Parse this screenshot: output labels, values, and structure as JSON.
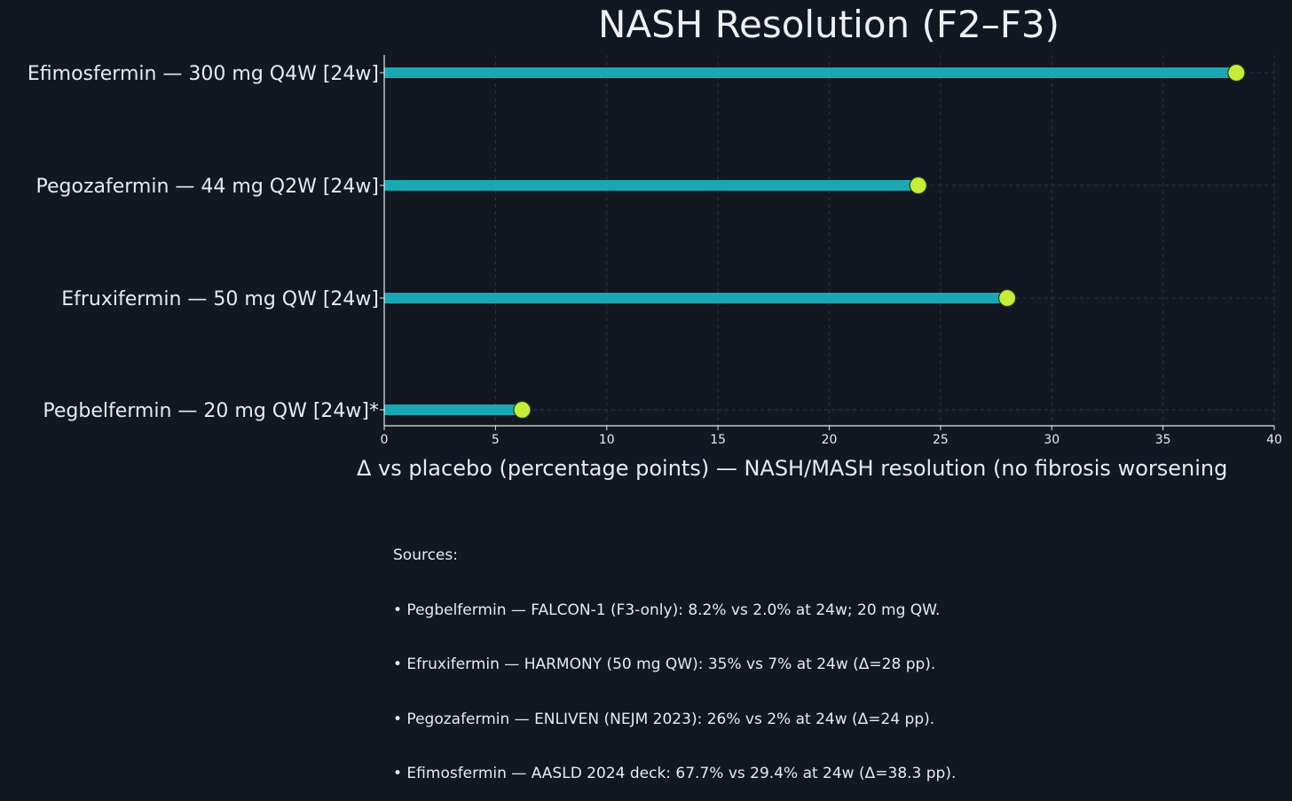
{
  "chart_data": {
    "type": "bar",
    "orientation": "horizontal",
    "title": "NASH Resolution (F2–F3)",
    "xlabel": "Δ vs placebo (percentage points) — NASH/MASH resolution (no fibrosis worsening",
    "ylabel": "",
    "xlim": [
      0,
      40
    ],
    "xticks": [
      0,
      5,
      10,
      15,
      20,
      25,
      30,
      35,
      40
    ],
    "grid": true,
    "categories": [
      "Efimosfermin — 300 mg Q4W [24w]",
      "Pegozafermin — 44 mg Q2W [24w]",
      "Efruxifermin — 50 mg QW [24w]",
      "Pegbelfermin — 20 mg QW [24w]*"
    ],
    "values": [
      38.3,
      24,
      28,
      6.2
    ],
    "colors": {
      "background": "#111821",
      "bar": "#1aa7b4",
      "marker": "#c6ec3a",
      "marker_edge": "#2b3a10",
      "grid": "#2a3440",
      "axis": "#e8eaed"
    }
  },
  "sources": {
    "heading": "Sources:",
    "lines": [
      "• Pegbelfermin — FALCON-1 (F3-only): 8.2% vs 2.0% at 24w; 20 mg QW.",
      "• Efruxifermin — HARMONY (50 mg QW): 35% vs 7% at 24w (Δ=28 pp).",
      "• Pegozafermin — ENLIVEN (NEJM 2023): 26% vs 2% at 24w (Δ=24 pp).",
      "• Efimosfermin — AASLD 2024 deck: 67.7% vs 29.4% at 24w (Δ=38.3 pp)."
    ]
  }
}
